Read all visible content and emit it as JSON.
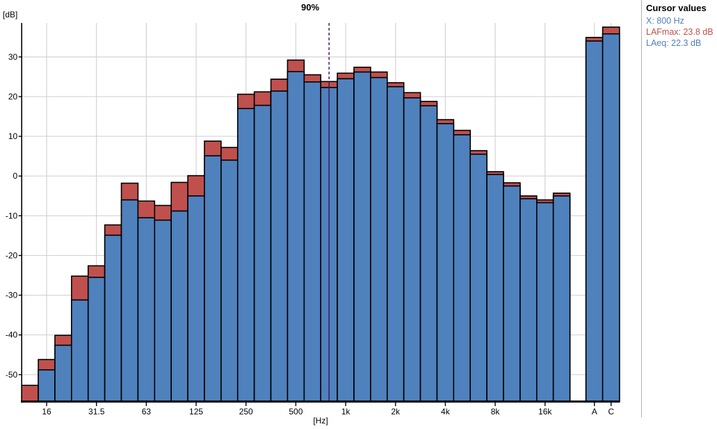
{
  "chart_data": {
    "type": "bar",
    "title": "90%",
    "ylabel": "[dB]",
    "xlabel": "[Hz]",
    "ylim": [
      -56.7,
      38.9
    ],
    "yticks": [
      30,
      20,
      10,
      0,
      -10,
      -20,
      -30,
      -40,
      -50
    ],
    "grid": true,
    "categories": [
      "12.5",
      "16",
      "20",
      "25",
      "31.5",
      "40",
      "50",
      "63",
      "80",
      "100",
      "125",
      "160",
      "200",
      "250",
      "315",
      "400",
      "500",
      "630",
      "800",
      "1k",
      "1.25k",
      "1.6k",
      "2k",
      "2.5k",
      "3.15k",
      "4k",
      "5k",
      "6.3k",
      "8k",
      "10k",
      "12.5k",
      "16k",
      "20k",
      "A",
      "C"
    ],
    "xtick_labels": [
      "16",
      "31.5",
      "63",
      "125",
      "250",
      "500",
      "1k",
      "2k",
      "4k",
      "8k",
      "16k",
      "A",
      "C"
    ],
    "series": [
      {
        "name": "LAFmax",
        "color": "#c0504d",
        "values": [
          -52.7,
          -46.2,
          -40.1,
          -25.2,
          -22.6,
          -12.3,
          -1.8,
          -6.3,
          -7.4,
          -1.6,
          0.1,
          8.8,
          7.2,
          20.6,
          21.2,
          24.4,
          29.2,
          25.5,
          23.8,
          25.9,
          27.4,
          26.2,
          23.5,
          21.0,
          18.8,
          14.2,
          11.5,
          6.4,
          1.1,
          -1.7,
          -5.0,
          -6.0,
          -4.3,
          34.9,
          37.5
        ]
      },
      {
        "name": "LAeq",
        "color": "#4f81bd",
        "values": [
          -57.5,
          -48.8,
          -42.6,
          -31.2,
          -25.5,
          -14.9,
          -6.0,
          -10.5,
          -11.1,
          -8.8,
          -5.0,
          5.1,
          4.0,
          17.0,
          17.8,
          21.4,
          26.3,
          23.7,
          22.3,
          24.5,
          26.2,
          24.8,
          22.5,
          19.7,
          17.7,
          13.2,
          10.4,
          5.5,
          0.4,
          -2.5,
          -5.7,
          -6.7,
          -5.0,
          34.0,
          35.8
        ]
      }
    ],
    "cursor": {
      "category": "800"
    }
  },
  "cursor_values": {
    "title": "Cursor values",
    "x": "X: 800 Hz",
    "lafmax": "LAFmax: 23.8 dB",
    "laeq": "LAeq: 22.3 dB"
  },
  "colors": {
    "bar_blue": "#4f81bd",
    "bar_red": "#c0504d",
    "grid": "#d3d3d3",
    "axis": "#000000",
    "cursor_line": "#3d1053",
    "panel_divider": "#b0b0b0",
    "text_blue": "#4f81bd",
    "text_red": "#c0504d"
  }
}
